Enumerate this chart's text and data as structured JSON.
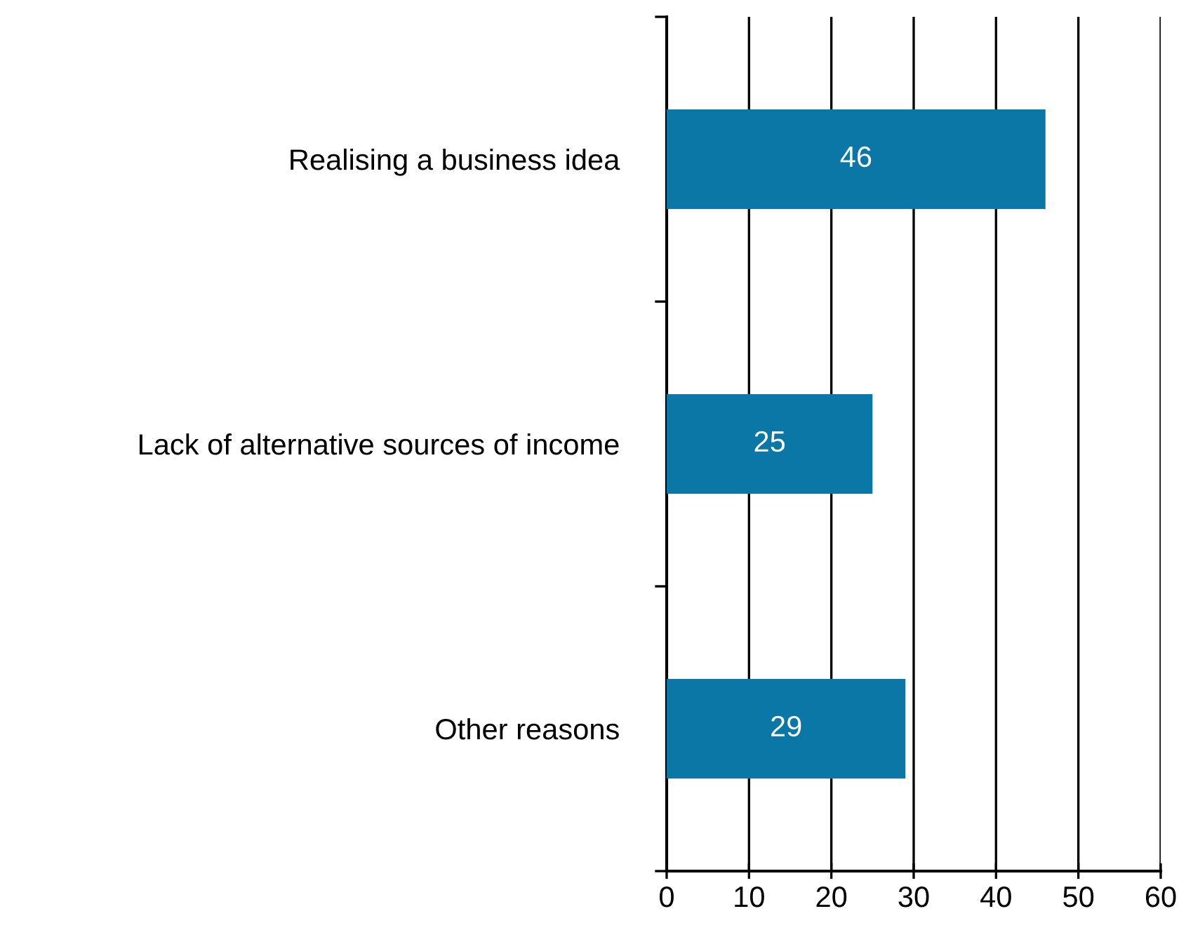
{
  "chart_data": {
    "type": "bar",
    "orientation": "horizontal",
    "categories": [
      "Realising a business idea",
      "Lack of alternative sources of income",
      "Other reasons"
    ],
    "values": [
      46,
      25,
      29
    ],
    "color": "#0a77a7",
    "data_labels": true,
    "xlim": [
      0,
      60
    ],
    "xticks": [
      0,
      10,
      20,
      30,
      40,
      50,
      60
    ],
    "grid": "x",
    "legend": false
  }
}
